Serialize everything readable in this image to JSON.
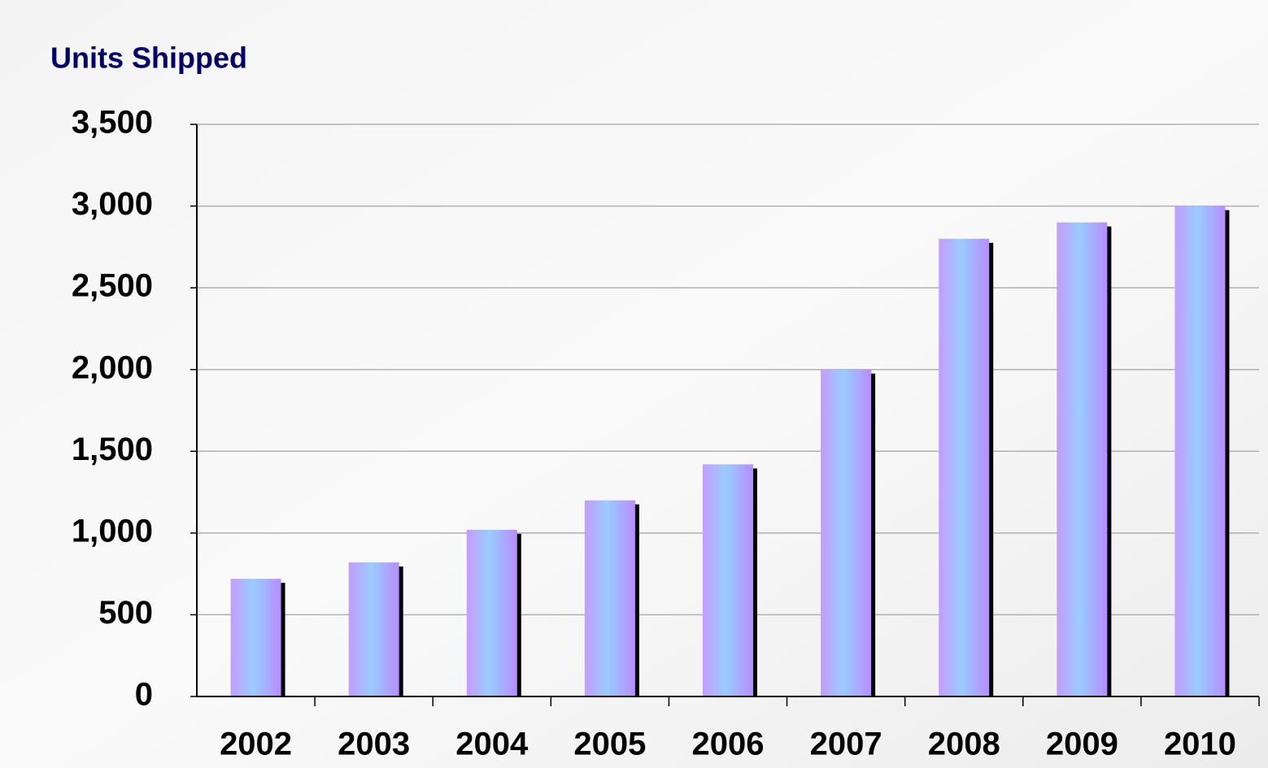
{
  "chart_data": {
    "type": "bar",
    "y_label": "Units Shipped",
    "categories": [
      "2002",
      "2003",
      "2004",
      "2005",
      "2006",
      "2007",
      "2008",
      "2009",
      "2010"
    ],
    "values": [
      720,
      820,
      1020,
      1200,
      1420,
      2000,
      2800,
      2900,
      3000
    ],
    "color": "#99ccff",
    "ylim": [
      0,
      3500
    ],
    "yticks": [
      0,
      500,
      {
        "value": 1000,
        "label": "1,000"
      },
      {
        "value": 1500,
        "label": "1,500"
      },
      {
        "value": 2000,
        "label": "2,000"
      },
      {
        "value": 2500,
        "label": "2,500"
      },
      {
        "value": 3000,
        "label": "3,000"
      },
      {
        "value": 3500,
        "label": "3,500"
      }
    ],
    "grid": true
  }
}
